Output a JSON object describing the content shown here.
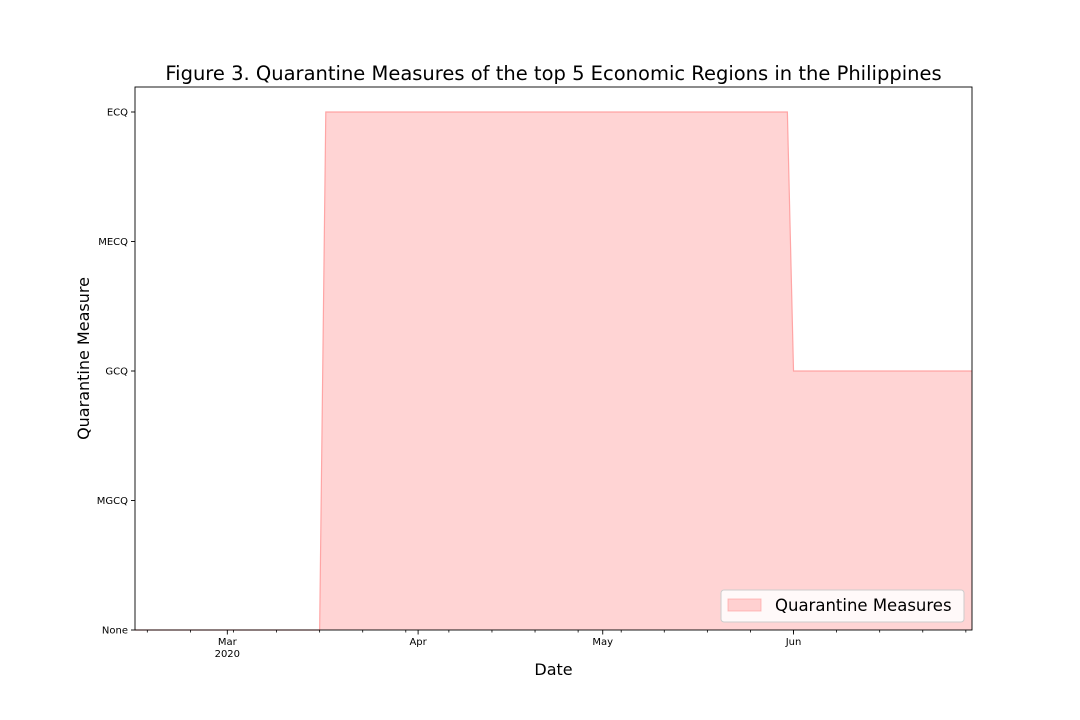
{
  "chart_data": {
    "type": "area",
    "title": "Figure 3. Quarantine Measures of the top 5 Economic Regions in the Philippines",
    "xlabel": "Date",
    "ylabel": "Quarantine Measure",
    "y_levels": [
      "None",
      "MGCQ",
      "GCQ",
      "MECQ",
      "ECQ"
    ],
    "ylim": [
      0,
      4
    ],
    "xlim": [
      "2020-02-15",
      "2020-06-30"
    ],
    "x_ticks": [
      {
        "date": "2020-03-01",
        "label": "Mar",
        "sublabel": "2020"
      },
      {
        "date": "2020-04-01",
        "label": "Apr",
        "sublabel": ""
      },
      {
        "date": "2020-05-01",
        "label": "May",
        "sublabel": ""
      },
      {
        "date": "2020-06-01",
        "label": "Jun",
        "sublabel": ""
      }
    ],
    "series": [
      {
        "name": "Quarantine Measures",
        "color": "#ff9999",
        "x": [
          "2020-02-15",
          "2020-03-16",
          "2020-03-17",
          "2020-05-31",
          "2020-06-01",
          "2020-06-30"
        ],
        "y": [
          0,
          0,
          4,
          4,
          2,
          2
        ]
      }
    ],
    "legend_position": "lower-right",
    "grid": false
  }
}
